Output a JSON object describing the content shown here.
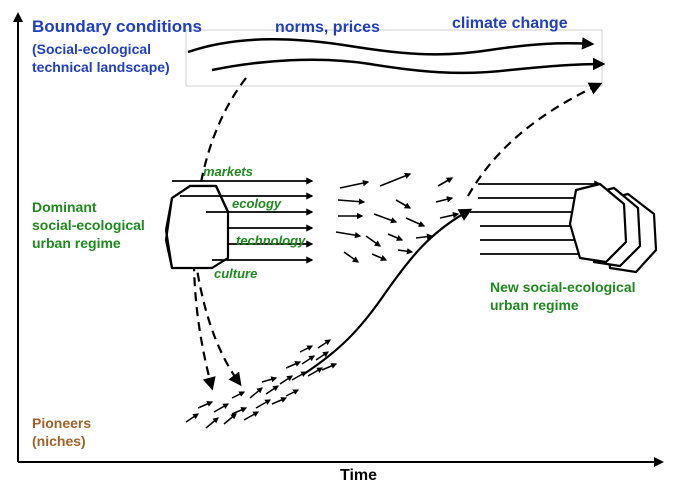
{
  "landscape": {
    "title": "Boundary conditions",
    "subtitle_line1": "(Social-ecological",
    "subtitle_line2": "technical landscape)",
    "trend_1": "norms, prices",
    "trend_2": "climate change"
  },
  "regime": {
    "label_line1": "Dominant",
    "label_line2": "social-ecological",
    "label_line3": "urban regime",
    "dimensions": [
      "markets",
      "ecology",
      "technology",
      "culture"
    ]
  },
  "new_regime": {
    "label_line1": "New social-ecological",
    "label_line2": "urban regime"
  },
  "niches": {
    "label_line1": "Pioneers",
    "label_line2": "(niches)"
  },
  "axis": {
    "x_label": "Time"
  },
  "colors": {
    "landscape": "#1f3fc0",
    "regime": "#1e8a1e",
    "niches": "#a0622a"
  }
}
